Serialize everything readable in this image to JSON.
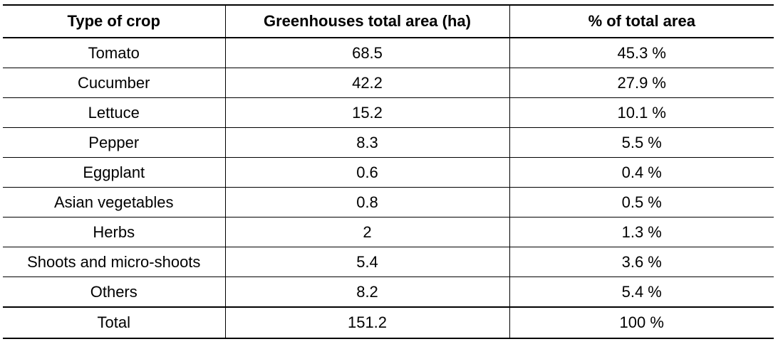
{
  "table": {
    "headers": [
      "Type of crop",
      "Greenhouses total area (ha)",
      "% of total area"
    ],
    "rows": [
      {
        "crop": "Tomato",
        "area": "68.5",
        "percent": "45.3 %"
      },
      {
        "crop": "Cucumber",
        "area": "42.2",
        "percent": "27.9 %"
      },
      {
        "crop": "Lettuce",
        "area": "15.2",
        "percent": "10.1 %"
      },
      {
        "crop": "Pepper",
        "area": "8.3",
        "percent": "5.5 %"
      },
      {
        "crop": "Eggplant",
        "area": "0.6",
        "percent": "0.4 %"
      },
      {
        "crop": "Asian vegetables",
        "area": "0.8",
        "percent": "0.5 %"
      },
      {
        "crop": "Herbs",
        "area": "2",
        "percent": "1.3 %"
      },
      {
        "crop": "Shoots and micro-shoots",
        "area": "5.4",
        "percent": "3.6 %"
      },
      {
        "crop": "Others",
        "area": "8.2",
        "percent": "5.4 %"
      }
    ],
    "total": {
      "crop": "Total",
      "area": "151.2",
      "percent": "100 %"
    }
  }
}
